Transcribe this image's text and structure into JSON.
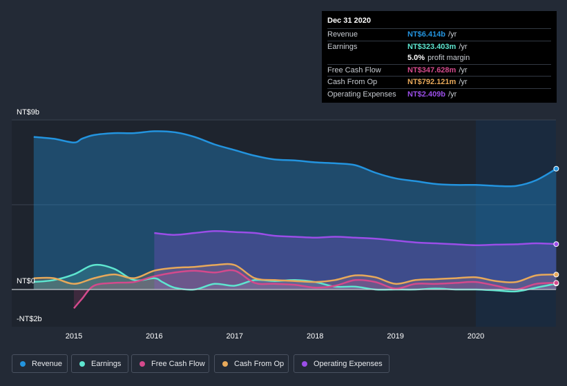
{
  "chart_data": {
    "type": "area",
    "y_axis_top_label": "NT$9b",
    "y_axis_zero_label": "NT$0",
    "y_axis_bottom_label": "-NT$2b",
    "ylim": [
      -2,
      9
    ],
    "xlim": [
      2014.5,
      2021.0
    ],
    "forecast_shade_start": 2020.0,
    "x_ticks": [
      "2015",
      "2016",
      "2017",
      "2018",
      "2019",
      "2020"
    ],
    "series": [
      {
        "name": "Revenue",
        "color": "#2394df",
        "x": [
          2014.5,
          2014.75,
          2015.0,
          2015.1,
          2015.25,
          2015.5,
          2015.75,
          2016.0,
          2016.25,
          2016.5,
          2016.75,
          2017.0,
          2017.25,
          2017.5,
          2017.75,
          2018.0,
          2018.25,
          2018.5,
          2018.75,
          2019.0,
          2019.25,
          2019.5,
          2019.75,
          2020.0,
          2020.25,
          2020.5,
          2020.75,
          2021.0
        ],
        "values": [
          8.1,
          8.0,
          7.8,
          8.0,
          8.2,
          8.3,
          8.3,
          8.4,
          8.35,
          8.1,
          7.7,
          7.4,
          7.1,
          6.9,
          6.85,
          6.75,
          6.7,
          6.6,
          6.2,
          5.9,
          5.75,
          5.6,
          5.55,
          5.55,
          5.5,
          5.5,
          5.8,
          6.41
        ]
      },
      {
        "name": "Earnings",
        "color": "#5ee6d0",
        "x": [
          2014.5,
          2014.75,
          2015.0,
          2015.25,
          2015.5,
          2015.75,
          2016.0,
          2016.1,
          2016.25,
          2016.5,
          2016.75,
          2017.0,
          2017.25,
          2017.5,
          2017.75,
          2018.0,
          2018.25,
          2018.5,
          2018.75,
          2019.0,
          2019.25,
          2019.5,
          2019.75,
          2020.0,
          2020.25,
          2020.5,
          2020.75,
          2021.0
        ],
        "values": [
          0.4,
          0.5,
          0.8,
          1.3,
          1.1,
          0.5,
          0.6,
          0.4,
          0.1,
          0.0,
          0.3,
          0.2,
          0.5,
          0.45,
          0.5,
          0.4,
          0.15,
          0.15,
          0.0,
          0.0,
          0.0,
          0.05,
          0.0,
          0.0,
          -0.05,
          -0.1,
          0.1,
          0.32
        ]
      },
      {
        "name": "Free Cash Flow",
        "color": "#d44a8c",
        "x": [
          2015.0,
          2015.1,
          2015.25,
          2015.5,
          2015.75,
          2016.0,
          2016.25,
          2016.5,
          2016.75,
          2017.0,
          2017.25,
          2017.5,
          2017.75,
          2018.0,
          2018.25,
          2018.5,
          2018.75,
          2019.0,
          2019.25,
          2019.5,
          2019.75,
          2020.0,
          2020.25,
          2020.5,
          2020.75,
          2021.0
        ],
        "values": [
          -1.0,
          -0.5,
          0.2,
          0.35,
          0.4,
          0.7,
          0.9,
          1.0,
          0.9,
          1.0,
          0.35,
          0.3,
          0.25,
          0.1,
          0.2,
          0.5,
          0.4,
          0.05,
          0.3,
          0.3,
          0.35,
          0.4,
          0.2,
          0.0,
          0.3,
          0.35
        ]
      },
      {
        "name": "Cash From Op",
        "color": "#e8a95a",
        "x": [
          2014.5,
          2014.75,
          2015.0,
          2015.25,
          2015.5,
          2015.75,
          2016.0,
          2016.25,
          2016.5,
          2016.75,
          2017.0,
          2017.25,
          2017.5,
          2017.75,
          2018.0,
          2018.25,
          2018.5,
          2018.75,
          2019.0,
          2019.25,
          2019.5,
          2019.75,
          2020.0,
          2020.25,
          2020.5,
          2020.75,
          2021.0
        ],
        "values": [
          0.6,
          0.6,
          0.3,
          0.6,
          0.8,
          0.6,
          1.0,
          1.15,
          1.2,
          1.3,
          1.3,
          0.6,
          0.5,
          0.45,
          0.4,
          0.5,
          0.75,
          0.65,
          0.3,
          0.5,
          0.55,
          0.6,
          0.65,
          0.45,
          0.4,
          0.75,
          0.79
        ]
      },
      {
        "name": "Operating Expenses",
        "color": "#9b4ee8",
        "x": [
          2016.0,
          2016.25,
          2016.5,
          2016.75,
          2017.0,
          2017.25,
          2017.5,
          2017.75,
          2018.0,
          2018.25,
          2018.5,
          2018.75,
          2019.0,
          2019.25,
          2019.5,
          2019.75,
          2020.0,
          2020.25,
          2020.5,
          2020.75,
          2021.0
        ],
        "values": [
          3.0,
          2.9,
          3.0,
          3.1,
          3.05,
          3.0,
          2.85,
          2.8,
          2.75,
          2.8,
          2.75,
          2.7,
          2.6,
          2.5,
          2.45,
          2.4,
          2.35,
          2.38,
          2.4,
          2.45,
          2.41
        ]
      }
    ],
    "tooltip": {
      "date": "Dec 31 2020",
      "rows": [
        {
          "label": "Revenue",
          "value": "NT$6.414b",
          "unit": "/yr",
          "color": "#2394df"
        },
        {
          "label": "Earnings",
          "value": "NT$323.403m",
          "unit": "/yr",
          "color": "#5ee6d0"
        },
        {
          "label": "",
          "value": "5.0%",
          "unit": "profit margin",
          "color": "#ffffff"
        },
        {
          "label": "Free Cash Flow",
          "value": "NT$347.628m",
          "unit": "/yr",
          "color": "#d44a8c"
        },
        {
          "label": "Cash From Op",
          "value": "NT$792.121m",
          "unit": "/yr",
          "color": "#e8a95a"
        },
        {
          "label": "Operating Expenses",
          "value": "NT$2.409b",
          "unit": "/yr",
          "color": "#9b4ee8"
        }
      ]
    },
    "legend": [
      "Revenue",
      "Earnings",
      "Free Cash Flow",
      "Cash From Op",
      "Operating Expenses"
    ]
  }
}
